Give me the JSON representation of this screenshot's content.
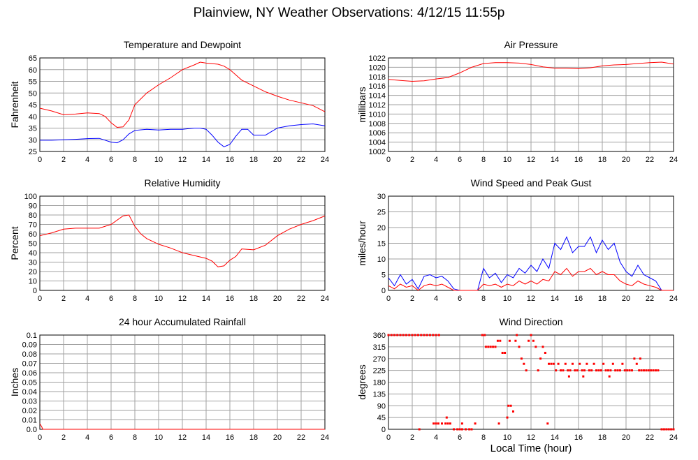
{
  "page": {
    "title": "Plainview, NY Weather Observations: 4/12/15 11:55p",
    "x_axis_caption": "Local Time (hour)"
  },
  "colors": {
    "red": "#ff0000",
    "blue": "#0000ff",
    "grid": "#a0a0a0"
  },
  "chart_data": [
    {
      "type": "line",
      "title": "Temperature and Dewpoint",
      "ylabel": "Fahrenheit",
      "xlim": [
        0,
        24
      ],
      "ylim": [
        25,
        65
      ],
      "xticks": [
        0,
        2,
        4,
        6,
        8,
        10,
        12,
        14,
        16,
        18,
        20,
        22,
        24
      ],
      "yticks": [
        25,
        30,
        35,
        40,
        45,
        50,
        55,
        60,
        65
      ],
      "grid": true,
      "series": [
        {
          "color": "red",
          "x": [
            0,
            1,
            2,
            3,
            4,
            5,
            5.5,
            6,
            6.5,
            7,
            7.5,
            8,
            8.5,
            9,
            10,
            11,
            12,
            13,
            13.5,
            14,
            15,
            15.5,
            16,
            17,
            18,
            19,
            20,
            21,
            22,
            23,
            24
          ],
          "y": [
            43.5,
            42.3,
            40.7,
            41,
            41.5,
            41.2,
            40,
            37.3,
            35.3,
            35.5,
            38.5,
            45,
            47.5,
            50,
            53.5,
            56.5,
            60,
            62,
            63.2,
            62.8,
            62.3,
            61.5,
            60,
            55.5,
            53,
            50.5,
            48.6,
            47,
            45.8,
            44.6,
            42
          ]
        },
        {
          "color": "blue",
          "x": [
            0,
            1,
            2,
            3,
            4,
            5,
            6,
            6.5,
            7,
            7.5,
            8,
            9,
            10,
            11,
            12,
            13,
            13.5,
            14,
            14.5,
            15,
            15.5,
            16,
            16.5,
            17,
            17.5,
            18,
            19,
            20,
            21,
            22,
            23,
            24
          ],
          "y": [
            29.8,
            29.8,
            30,
            30.2,
            30.5,
            30.6,
            29,
            28.7,
            30,
            32.5,
            34,
            34.5,
            34.2,
            34.5,
            34.5,
            35,
            35,
            34.5,
            32,
            29,
            27,
            28,
            31.5,
            34.5,
            34.5,
            32,
            32,
            35,
            36,
            36.5,
            36.8,
            36
          ]
        }
      ]
    },
    {
      "type": "line",
      "title": "Air Pressure",
      "ylabel": "millibars",
      "xlim": [
        0,
        24
      ],
      "ylim": [
        1002,
        1022
      ],
      "xticks": [
        0,
        2,
        4,
        6,
        8,
        10,
        12,
        14,
        16,
        18,
        20,
        22,
        24
      ],
      "yticks": [
        1002,
        1004,
        1006,
        1008,
        1010,
        1012,
        1014,
        1016,
        1018,
        1020,
        1022
      ],
      "grid": true,
      "series": [
        {
          "color": "red",
          "x": [
            0,
            1,
            2,
            3,
            4,
            5,
            6,
            7,
            8,
            9,
            10,
            11,
            12,
            13,
            14,
            15,
            16,
            17,
            18,
            19,
            20,
            21,
            22,
            23,
            24
          ],
          "y": [
            1017.4,
            1017.2,
            1017,
            1017.1,
            1017.5,
            1017.8,
            1018.8,
            1020,
            1020.8,
            1021,
            1021,
            1020.9,
            1020.6,
            1020.1,
            1019.8,
            1019.8,
            1019.7,
            1019.9,
            1020.3,
            1020.5,
            1020.6,
            1020.8,
            1021,
            1021.1,
            1020.7
          ]
        }
      ]
    },
    {
      "type": "line",
      "title": "Relative Humidity",
      "ylabel": "Percent",
      "xlim": [
        0,
        24
      ],
      "ylim": [
        0,
        100
      ],
      "xticks": [
        0,
        2,
        4,
        6,
        8,
        10,
        12,
        14,
        16,
        18,
        20,
        22,
        24
      ],
      "yticks": [
        0,
        10,
        20,
        30,
        40,
        50,
        60,
        70,
        80,
        90,
        100
      ],
      "grid": true,
      "series": [
        {
          "color": "red",
          "x": [
            0,
            1,
            2,
            3,
            4,
            5,
            6,
            7,
            7.5,
            8,
            8.5,
            9,
            10,
            11,
            12,
            13,
            14,
            14.5,
            15,
            15.5,
            16,
            16.5,
            17,
            18,
            19,
            20,
            21,
            22,
            23,
            24
          ],
          "y": [
            58,
            61,
            65,
            66,
            66,
            66,
            70,
            79,
            80,
            68,
            60,
            55,
            49,
            45,
            40,
            37,
            34,
            31,
            25,
            26,
            32,
            36,
            44,
            43,
            48,
            58,
            65,
            70,
            74,
            79
          ]
        }
      ]
    },
    {
      "type": "line",
      "title": "Wind Speed and Peak Gust",
      "ylabel": "miles/hour",
      "xlim": [
        0,
        24
      ],
      "ylim": [
        0,
        30
      ],
      "xticks": [
        0,
        2,
        4,
        6,
        8,
        10,
        12,
        14,
        16,
        18,
        20,
        22,
        24
      ],
      "yticks": [
        0,
        5,
        10,
        15,
        20,
        25,
        30
      ],
      "grid": true,
      "series": [
        {
          "color": "blue",
          "x": [
            0,
            0.5,
            1,
            1.5,
            2,
            2.5,
            3,
            3.5,
            4,
            4.5,
            5,
            5.5,
            6,
            7,
            7.5,
            8,
            8.5,
            9,
            9.5,
            10,
            10.5,
            11,
            11.5,
            12,
            12.5,
            13,
            13.5,
            14,
            14.5,
            15,
            15.5,
            16,
            16.5,
            17,
            17.5,
            18,
            18.5,
            19,
            19.5,
            20,
            20.5,
            21,
            21.5,
            22,
            22.5,
            23,
            24
          ],
          "y": [
            4,
            1.5,
            5,
            2,
            3.5,
            0.5,
            4.5,
            5,
            4,
            4.5,
            3,
            0.5,
            0,
            0,
            0,
            7,
            4,
            5.5,
            2.5,
            5,
            4,
            7,
            5.5,
            8,
            6,
            10,
            7,
            15,
            13,
            17,
            12,
            14,
            14,
            17,
            12,
            16,
            13,
            15,
            9,
            6,
            4.5,
            8,
            5,
            4,
            3,
            0,
            0
          ]
        },
        {
          "color": "red",
          "x": [
            0,
            0.5,
            1,
            1.5,
            2,
            2.5,
            3,
            3.5,
            4,
            4.5,
            5,
            5.5,
            6,
            7,
            7.5,
            8,
            8.5,
            9,
            9.5,
            10,
            10.5,
            11,
            11.5,
            12,
            12.5,
            13,
            13.5,
            14,
            14.5,
            15,
            15.5,
            16,
            16.5,
            17,
            17.5,
            18,
            18.5,
            19,
            19.5,
            20,
            20.5,
            21,
            21.5,
            22,
            22.5,
            23,
            24
          ],
          "y": [
            1.5,
            0.5,
            2,
            1,
            1.5,
            0,
            1.5,
            2,
            1.5,
            2,
            1,
            0,
            0,
            0,
            0,
            2,
            1.5,
            2,
            1,
            2,
            1.5,
            3,
            2,
            3,
            2,
            3.5,
            3,
            6,
            5,
            7,
            4.5,
            6,
            6,
            7,
            5,
            6,
            5,
            5,
            3,
            2,
            1.5,
            3,
            2,
            1.5,
            1,
            0,
            0
          ]
        }
      ]
    },
    {
      "type": "line",
      "title": "24 hour Accumulated Rainfall",
      "ylabel": "Inches",
      "xlim": [
        0,
        24
      ],
      "ylim": [
        0,
        0.1
      ],
      "xticks": [
        0,
        2,
        4,
        6,
        8,
        10,
        12,
        14,
        16,
        18,
        20,
        22,
        24
      ],
      "yticks": [
        "0.0",
        "0.01",
        "0.02",
        "0.03",
        "0.04",
        "0.05",
        "0.06",
        "0.07",
        "0.08",
        "0.09",
        "0.1"
      ],
      "grid": true,
      "series": [
        {
          "color": "red",
          "x": [
            0,
            0.15,
            0.25,
            24
          ],
          "y": [
            0.006,
            0.003,
            0,
            0
          ]
        }
      ]
    },
    {
      "type": "scatter",
      "title": "Wind Direction",
      "ylabel": "degrees",
      "xlim": [
        0,
        24
      ],
      "ylim": [
        0,
        360
      ],
      "xticks": [
        0,
        2,
        4,
        6,
        8,
        10,
        12,
        14,
        16,
        18,
        20,
        22,
        24
      ],
      "yticks": [
        0,
        45,
        90,
        135,
        180,
        225,
        270,
        315,
        360
      ],
      "grid": true,
      "series": [
        {
          "color": "red",
          "points": [
            [
              0,
              360
            ],
            [
              0.25,
              360
            ],
            [
              0.5,
              360
            ],
            [
              0.75,
              360
            ],
            [
              1,
              360
            ],
            [
              1.25,
              360
            ],
            [
              1.5,
              360
            ],
            [
              1.75,
              360
            ],
            [
              2,
              360
            ],
            [
              2.25,
              360
            ],
            [
              2.5,
              360
            ],
            [
              2.75,
              360
            ],
            [
              3,
              360
            ],
            [
              3.25,
              360
            ],
            [
              3.5,
              360
            ],
            [
              3.75,
              360
            ],
            [
              4,
              360
            ],
            [
              4.25,
              360
            ],
            [
              2.6,
              0
            ],
            [
              3.8,
              22
            ],
            [
              4,
              22
            ],
            [
              4.2,
              22
            ],
            [
              4.5,
              22
            ],
            [
              4.8,
              22
            ],
            [
              5,
              22
            ],
            [
              5.2,
              22
            ],
            [
              4.9,
              45
            ],
            [
              5.5,
              0
            ],
            [
              5.8,
              0
            ],
            [
              6,
              0
            ],
            [
              6.2,
              0
            ],
            [
              6.5,
              0
            ],
            [
              6.8,
              0
            ],
            [
              7,
              0
            ],
            [
              7.3,
              22
            ],
            [
              6.2,
              22
            ],
            [
              7.9,
              360
            ],
            [
              8.1,
              360
            ],
            [
              8.2,
              315
            ],
            [
              8.4,
              315
            ],
            [
              8.6,
              315
            ],
            [
              8.8,
              315
            ],
            [
              9,
              315
            ],
            [
              9.2,
              338
            ],
            [
              9.4,
              338
            ],
            [
              9.6,
              292
            ],
            [
              9.3,
              22
            ],
            [
              9.8,
              292
            ],
            [
              10,
              45
            ],
            [
              10.1,
              90
            ],
            [
              10.3,
              90
            ],
            [
              10.5,
              68
            ],
            [
              10.2,
              338
            ],
            [
              10.7,
              338
            ],
            [
              10.8,
              360
            ],
            [
              11,
              315
            ],
            [
              11.2,
              270
            ],
            [
              11.4,
              250
            ],
            [
              11.6,
              225
            ],
            [
              11.8,
              338
            ],
            [
              12,
              360
            ],
            [
              12.2,
              338
            ],
            [
              12.4,
              315
            ],
            [
              12.6,
              225
            ],
            [
              12.8,
              270
            ],
            [
              13,
              315
            ],
            [
              13.2,
              292
            ],
            [
              13.4,
              22
            ],
            [
              13.5,
              250
            ],
            [
              13.7,
              250
            ],
            [
              13.9,
              250
            ],
            [
              14.1,
              225
            ],
            [
              14.3,
              250
            ],
            [
              14.5,
              225
            ],
            [
              14.7,
              225
            ],
            [
              14.9,
              250
            ],
            [
              15.1,
              225
            ],
            [
              15.3,
              225
            ],
            [
              15.5,
              250
            ],
            [
              15.7,
              225
            ],
            [
              15.9,
              225
            ],
            [
              16.1,
              250
            ],
            [
              16.3,
              225
            ],
            [
              16.5,
              225
            ],
            [
              16.7,
              250
            ],
            [
              16.9,
              225
            ],
            [
              17.1,
              225
            ],
            [
              17.3,
              250
            ],
            [
              17.5,
              225
            ],
            [
              17.7,
              225
            ],
            [
              17.9,
              225
            ],
            [
              18.1,
              250
            ],
            [
              18.3,
              225
            ],
            [
              18.5,
              225
            ],
            [
              18.7,
              225
            ],
            [
              18.9,
              250
            ],
            [
              19.1,
              225
            ],
            [
              19.3,
              225
            ],
            [
              19.5,
              225
            ],
            [
              19.7,
              250
            ],
            [
              19.9,
              225
            ],
            [
              20.1,
              225
            ],
            [
              20.3,
              225
            ],
            [
              20.5,
              225
            ],
            [
              20.7,
              270
            ],
            [
              20.9,
              250
            ],
            [
              21.1,
              225
            ],
            [
              21.3,
              225
            ],
            [
              21.5,
              225
            ],
            [
              21.7,
              225
            ],
            [
              21.9,
              225
            ],
            [
              22.1,
              225
            ],
            [
              22.3,
              225
            ],
            [
              22.5,
              225
            ],
            [
              22.7,
              225
            ],
            [
              15.2,
              202
            ],
            [
              16.4,
              202
            ],
            [
              18.6,
              202
            ],
            [
              21.2,
              270
            ],
            [
              23,
              0
            ],
            [
              23.2,
              0
            ],
            [
              23.4,
              0
            ],
            [
              23.6,
              0
            ],
            [
              23.8,
              0
            ],
            [
              24,
              0
            ]
          ]
        }
      ]
    }
  ]
}
